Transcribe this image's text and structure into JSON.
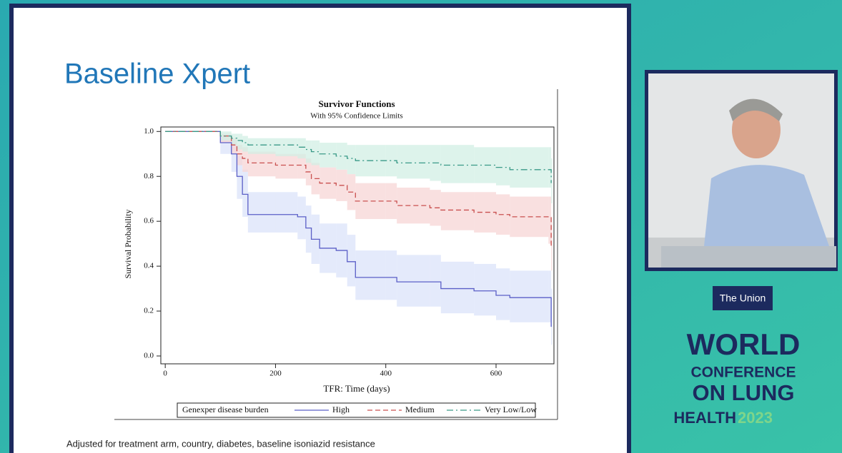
{
  "slide": {
    "title": "Baseline Xpert",
    "footnote": "Adjusted for treatment arm, country, diabetes, baseline isoniazid resistance"
  },
  "branding": {
    "badge": "The Union",
    "line1": "WORLD",
    "line2": "CONFERENCE",
    "line3": "ON LUNG",
    "line4": "HEALTH",
    "year": "2023"
  },
  "chart_data": {
    "type": "line",
    "drawstyle": "steps-post",
    "title": "Survivor Functions",
    "subtitle": "With 95% Confidence Limits",
    "xlabel": "TFR: Time (days)",
    "ylabel": "Survival Probability",
    "legend_title": "Genexper disease burden",
    "legend": "bottom",
    "xlim": [
      -8,
      705
    ],
    "ylim": [
      -0.035,
      1.02
    ],
    "xticks": [
      0,
      200,
      400,
      600
    ],
    "yticks": [
      {
        "value": 0,
        "label": "0.0"
      },
      0.2,
      0.4,
      0.6,
      0.8,
      {
        "value": 1,
        "label": "1.0"
      }
    ],
    "x": [
      0,
      60,
      100,
      120,
      130,
      140,
      150,
      200,
      240,
      255,
      265,
      280,
      310,
      330,
      345,
      400,
      420,
      480,
      500,
      560,
      600,
      625,
      695,
      700
    ],
    "series": [
      {
        "name": "High",
        "color": "#5b5fc7",
        "band_color": "#dbe3fa",
        "linestyle": "solid",
        "values": [
          1,
          1,
          0.95,
          0.9,
          0.8,
          0.72,
          0.63,
          0.63,
          0.62,
          0.57,
          0.52,
          0.48,
          0.47,
          0.42,
          0.35,
          0.35,
          0.33,
          0.33,
          0.3,
          0.29,
          0.27,
          0.26,
          0.26,
          0.13
        ],
        "ci_lower": [
          1,
          1,
          0.9,
          0.82,
          0.7,
          0.62,
          0.55,
          0.55,
          0.52,
          0.46,
          0.41,
          0.37,
          0.35,
          0.31,
          0.25,
          0.25,
          0.22,
          0.22,
          0.19,
          0.18,
          0.16,
          0.15,
          0.15,
          0.05
        ],
        "ci_upper": [
          1,
          1,
          0.99,
          0.96,
          0.89,
          0.83,
          0.73,
          0.73,
          0.71,
          0.67,
          0.63,
          0.59,
          0.59,
          0.54,
          0.47,
          0.47,
          0.45,
          0.45,
          0.42,
          0.41,
          0.39,
          0.38,
          0.38,
          0.3
        ]
      },
      {
        "name": "Medium",
        "color": "#c9504f",
        "band_color": "#f7d6d6",
        "linestyle": "dashed",
        "values": [
          1,
          1,
          0.98,
          0.94,
          0.9,
          0.88,
          0.86,
          0.85,
          0.85,
          0.82,
          0.79,
          0.77,
          0.76,
          0.73,
          0.69,
          0.69,
          0.67,
          0.66,
          0.65,
          0.64,
          0.63,
          0.62,
          0.62,
          0.48
        ],
        "ci_lower": [
          1,
          1,
          0.95,
          0.9,
          0.85,
          0.82,
          0.8,
          0.79,
          0.79,
          0.76,
          0.72,
          0.7,
          0.69,
          0.65,
          0.61,
          0.61,
          0.59,
          0.58,
          0.56,
          0.55,
          0.54,
          0.53,
          0.5,
          0.38
        ],
        "ci_upper": [
          1,
          1,
          0.99,
          0.97,
          0.94,
          0.93,
          0.91,
          0.9,
          0.9,
          0.88,
          0.86,
          0.84,
          0.83,
          0.81,
          0.77,
          0.77,
          0.75,
          0.74,
          0.73,
          0.73,
          0.72,
          0.71,
          0.71,
          0.6
        ]
      },
      {
        "name": "Very Low/Low",
        "color": "#3a9a88",
        "band_color": "#d2efe4",
        "linestyle": "dashdot",
        "values": [
          1,
          1,
          0.98,
          0.97,
          0.96,
          0.95,
          0.94,
          0.94,
          0.93,
          0.92,
          0.91,
          0.9,
          0.89,
          0.88,
          0.87,
          0.87,
          0.86,
          0.86,
          0.85,
          0.85,
          0.84,
          0.83,
          0.83,
          0.77
        ],
        "ci_lower": [
          1,
          1,
          0.96,
          0.94,
          0.92,
          0.91,
          0.9,
          0.89,
          0.88,
          0.86,
          0.85,
          0.84,
          0.83,
          0.81,
          0.8,
          0.8,
          0.79,
          0.78,
          0.77,
          0.77,
          0.76,
          0.75,
          0.75,
          0.68
        ],
        "ci_upper": [
          1,
          1,
          1,
          0.99,
          0.99,
          0.98,
          0.97,
          0.97,
          0.97,
          0.96,
          0.96,
          0.95,
          0.95,
          0.94,
          0.94,
          0.94,
          0.94,
          0.94,
          0.94,
          0.93,
          0.93,
          0.93,
          0.93,
          0.88
        ]
      }
    ]
  }
}
